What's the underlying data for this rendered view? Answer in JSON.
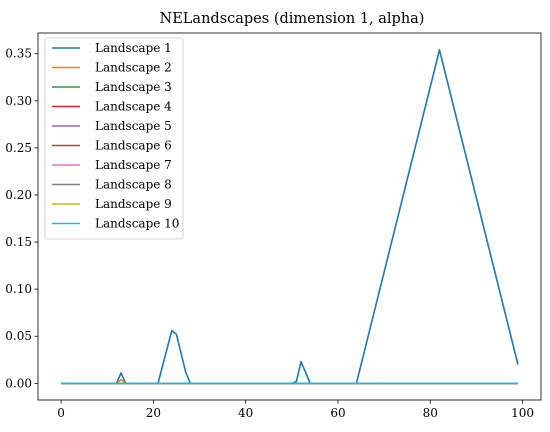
{
  "chart_data": {
    "type": "line",
    "title": "NELandscapes (dimension 1, alpha)",
    "xlabel": "",
    "ylabel": "",
    "xlim": [
      -5,
      104
    ],
    "ylim": [
      -0.0177,
      0.372
    ],
    "xticks": [
      0,
      20,
      40,
      60,
      80,
      100
    ],
    "yticks": [
      0.0,
      0.05,
      0.1,
      0.15,
      0.2,
      0.25,
      0.3,
      0.35
    ],
    "ytick_labels": [
      "0.00",
      "0.05",
      "0.10",
      "0.15",
      "0.20",
      "0.25",
      "0.30",
      "0.35"
    ],
    "grid": false,
    "legend_position": "upper-left",
    "series": [
      {
        "name": "Landscape 1",
        "color": "#1f77b4",
        "points": [
          [
            0,
            0
          ],
          [
            12,
            0
          ],
          [
            13,
            0.011
          ],
          [
            14,
            0
          ],
          [
            21,
            0
          ],
          [
            24,
            0.056
          ],
          [
            25,
            0.052
          ],
          [
            27,
            0.012
          ],
          [
            28,
            0
          ],
          [
            50,
            0
          ],
          [
            51,
            0.002
          ],
          [
            52,
            0.023
          ],
          [
            54,
            0
          ],
          [
            64,
            0
          ],
          [
            82,
            0.354
          ],
          [
            99,
            0.02
          ]
        ]
      },
      {
        "name": "Landscape 2",
        "color": "#ff7f0e",
        "points": [
          [
            0,
            0
          ],
          [
            12,
            0
          ],
          [
            13,
            0.004
          ],
          [
            14,
            0
          ],
          [
            99,
            0
          ]
        ]
      },
      {
        "name": "Landscape 3",
        "color": "#2ca02c",
        "points": [
          [
            0,
            0
          ],
          [
            99,
            0
          ]
        ]
      },
      {
        "name": "Landscape 4",
        "color": "#d62728",
        "points": [
          [
            0,
            0
          ],
          [
            99,
            0
          ]
        ]
      },
      {
        "name": "Landscape 5",
        "color": "#9467bd",
        "points": [
          [
            0,
            0
          ],
          [
            99,
            0
          ]
        ]
      },
      {
        "name": "Landscape 6",
        "color": "#8c564b",
        "points": [
          [
            0,
            0
          ],
          [
            99,
            0
          ]
        ]
      },
      {
        "name": "Landscape 7",
        "color": "#e377c2",
        "points": [
          [
            0,
            0
          ],
          [
            99,
            0
          ]
        ]
      },
      {
        "name": "Landscape 8",
        "color": "#7f7f7f",
        "points": [
          [
            0,
            0
          ],
          [
            99,
            0
          ]
        ]
      },
      {
        "name": "Landscape 9",
        "color": "#bcbd22",
        "points": [
          [
            0,
            0
          ],
          [
            99,
            0
          ]
        ]
      },
      {
        "name": "Landscape 10",
        "color": "#17becf",
        "points": [
          [
            0,
            0
          ],
          [
            99,
            0
          ]
        ]
      }
    ]
  }
}
